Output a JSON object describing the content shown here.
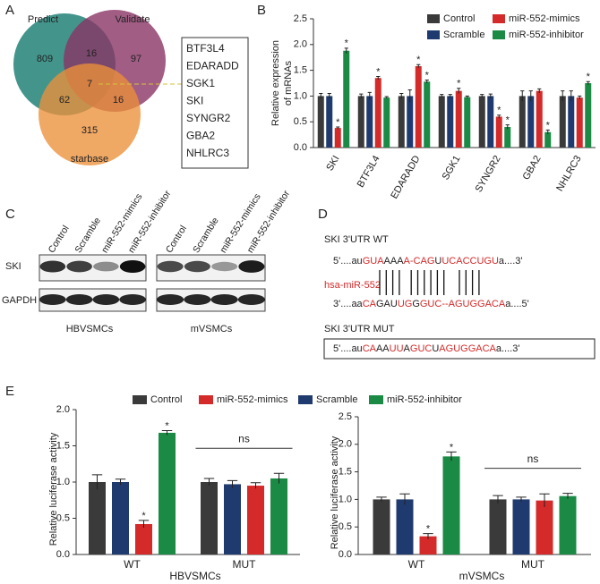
{
  "panel_labels": [
    "A",
    "B",
    "C",
    "D",
    "E"
  ],
  "venn": {
    "sets": [
      "Predict",
      "Validate",
      "starbase"
    ],
    "counts": {
      "predict_only": 809,
      "predict_validate": 16,
      "validate_only": 97,
      "all": 7,
      "predict_starbase": 62,
      "validate_starbase": 16,
      "starbase_only": 315
    },
    "genes": [
      "BTF3L4",
      "EDARADD",
      "SGK1",
      "SKI",
      "SYNGR2",
      "GBA2",
      "NHLRC3"
    ]
  },
  "blot": {
    "lanes": [
      "Control",
      "Scramble",
      "miR-552-mimics",
      "miR-552-inhibitor"
    ],
    "rows": [
      "SKI",
      "GAPDH"
    ],
    "groups": [
      "HBVSMCs",
      "mVSMCs"
    ]
  },
  "sequences": {
    "wt_heading": "SKI   3'UTR  WT",
    "wt": [
      {
        "text": "5'....au",
        "color": "#222"
      },
      {
        "text": "GUA",
        "color": "#d42a2a"
      },
      {
        "text": "AAA",
        "color": "#222"
      },
      {
        "text": "A-CAG",
        "color": "#d42a2a"
      },
      {
        "text": "U",
        "color": "#222"
      },
      {
        "text": "UCACCUGU",
        "color": "#d42a2a"
      },
      {
        "text": "a....3'",
        "color": "#222"
      }
    ],
    "mirna_label": "hsa-miR-552",
    "mirna": [
      {
        "text": "3'....aa",
        "color": "#222"
      },
      {
        "text": "CA",
        "color": "#d42a2a"
      },
      {
        "text": "GAU",
        "color": "#222"
      },
      {
        "text": "UG",
        "color": "#d42a2a"
      },
      {
        "text": "G",
        "color": "#222"
      },
      {
        "text": "GUC--AGUGGACA",
        "color": "#d42a2a"
      },
      {
        "text": "a....5'",
        "color": "#222"
      }
    ],
    "mut_heading": "SKI   3'UTR  MUT",
    "mut": [
      {
        "text": "5'....au",
        "color": "#222"
      },
      {
        "text": "CA",
        "color": "#d42a2a"
      },
      {
        "text": "AA",
        "color": "#222"
      },
      {
        "text": "UU",
        "color": "#d42a2a"
      },
      {
        "text": "A",
        "color": "#222"
      },
      {
        "text": "GUC",
        "color": "#d42a2a"
      },
      {
        "text": "U",
        "color": "#222"
      },
      {
        "text": "AGUGGACA",
        "color": "#d42a2a"
      },
      {
        "text": "a....3'",
        "color": "#222"
      }
    ]
  },
  "chart_data": [
    {
      "type": "bar",
      "ylabel": [
        "Relative expression",
        "of mRNAs"
      ],
      "categories": [
        "SKI",
        "BTF3L4",
        "EDARADD",
        "SGK1",
        "SYNGR2",
        "GBA2",
        "NHLRC3"
      ],
      "ylim": [
        0,
        2.5
      ],
      "yticks": [
        {
          "value": 0,
          "label": "0.0"
        },
        0.5,
        {
          "value": 1,
          "label": "1.0"
        },
        1.5,
        {
          "value": 2,
          "label": "2.0"
        },
        2.5
      ],
      "series": [
        {
          "name": "Control",
          "color": "#3a3a3a",
          "values": [
            1,
            1,
            1,
            1,
            1,
            1,
            1
          ],
          "errors": [
            0.05,
            0.04,
            0.05,
            0.03,
            0.03,
            0.1,
            0.1
          ]
        },
        {
          "name": "Scramble",
          "color": "#1f3a6e",
          "values": [
            1,
            1,
            1,
            1,
            1,
            1,
            1
          ],
          "errors": [
            0.05,
            0.07,
            0.12,
            0.03,
            0.04,
            0.1,
            0.1
          ]
        },
        {
          "name": "miR-552-mimics",
          "color": "#d42a2a",
          "values": [
            0.38,
            1.35,
            1.58,
            1.1,
            0.6,
            1.1,
            0.97
          ],
          "errors": [
            0.02,
            0.03,
            0.03,
            0.05,
            0.03,
            0.04,
            0.03
          ],
          "annotations": [
            "*",
            "*",
            "*",
            "*",
            "*",
            null,
            null
          ]
        },
        {
          "name": "miR-552-inhibitor",
          "color": "#1a8a45",
          "values": [
            1.88,
            0.97,
            1.28,
            0.98,
            0.4,
            0.3,
            1.25
          ],
          "errors": [
            0.05,
            0.02,
            0.03,
            0.02,
            0.04,
            0.04,
            0.03
          ],
          "annotations": [
            "*",
            null,
            "*",
            null,
            "*",
            "*",
            "*"
          ]
        }
      ]
    },
    {
      "type": "bar",
      "ylabel": "Relative luciferase activity",
      "series": [
        {
          "name": "Control",
          "color": "#3a3a3a"
        },
        {
          "name": "miR-552-mimics",
          "color": "#d42a2a"
        },
        {
          "name": "Scramble",
          "color": "#1f3a6e"
        },
        {
          "name": "miR-552-inhibitor",
          "color": "#1a8a45"
        }
      ],
      "panels": [
        {
          "xlabel": "HBVSMCs",
          "categories": [
            "WT",
            "MUT"
          ],
          "ylim": [
            0,
            2
          ],
          "yticks": [
            {
              "value": 0,
              "label": "0.0"
            },
            0.5,
            {
              "value": 1,
              "label": "1.0"
            },
            1.5,
            {
              "value": 2,
              "label": "2.0"
            }
          ],
          "significance": "ns",
          "series": [
            {
              "values": [
                1,
                1
              ],
              "errors": [
                0.1,
                0.05
              ]
            },
            {
              "values": [
                0.42,
                0.95
              ],
              "errors": [
                0.05,
                0.04
              ],
              "annotations": [
                "*",
                null
              ]
            },
            {
              "values": [
                1,
                0.97
              ],
              "errors": [
                0.04,
                0.05
              ]
            },
            {
              "values": [
                1.68,
                1.05
              ],
              "errors": [
                0.03,
                0.07
              ],
              "annotations": [
                "*",
                null
              ]
            }
          ]
        },
        {
          "xlabel": "mVSMCs",
          "categories": [
            "WT",
            "MUT"
          ],
          "ylim": [
            0,
            2.5
          ],
          "yticks": [
            {
              "value": 0,
              "label": "0.0"
            },
            0.5,
            {
              "value": 1,
              "label": "1.0"
            },
            1.5,
            {
              "value": 2,
              "label": "2.0"
            },
            2.5
          ],
          "significance": "ns",
          "series": [
            {
              "values": [
                1,
                1
              ],
              "errors": [
                0.04,
                0.07
              ]
            },
            {
              "values": [
                0.33,
                0.98
              ],
              "errors": [
                0.05,
                0.12
              ],
              "annotations": [
                "*",
                null
              ]
            },
            {
              "values": [
                1,
                1
              ],
              "errors": [
                0.1,
                0.04
              ]
            },
            {
              "values": [
                1.78,
                1.06
              ],
              "errors": [
                0.08,
                0.05
              ],
              "annotations": [
                "*",
                null
              ]
            }
          ]
        }
      ]
    }
  ]
}
